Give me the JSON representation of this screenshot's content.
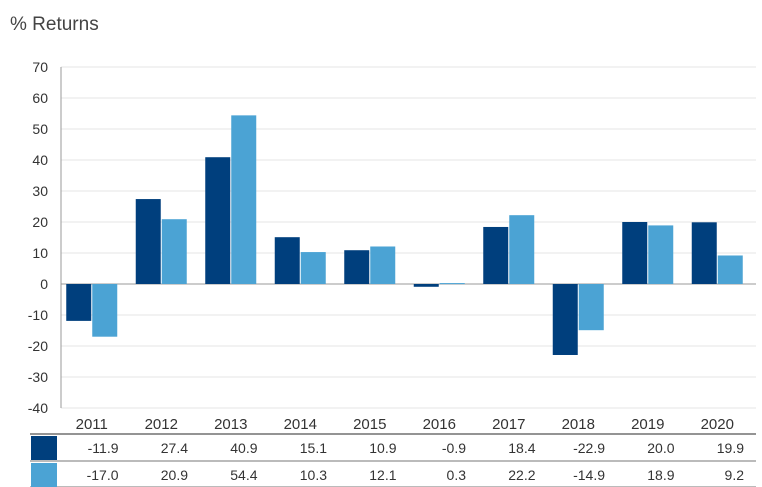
{
  "chart_data": {
    "type": "bar",
    "title": "% Returns",
    "categories": [
      "2011",
      "2012",
      "2013",
      "2014",
      "2015",
      "2016",
      "2017",
      "2018",
      "2019",
      "2020"
    ],
    "series": [
      {
        "values": [
          -11.9,
          27.4,
          40.9,
          15.1,
          10.9,
          -0.9,
          18.4,
          -22.9,
          20.0,
          19.9
        ],
        "labels": [
          "-11.9",
          "27.4",
          "40.9",
          "15.1",
          "10.9",
          "-0.9",
          "18.4",
          "-22.9",
          "20.0",
          "19.9"
        ],
        "color": "#003f7d"
      },
      {
        "values": [
          -17.0,
          20.9,
          54.4,
          10.3,
          12.1,
          0.3,
          22.2,
          -14.9,
          18.9,
          9.2
        ],
        "labels": [
          "-17.0",
          "20.9",
          "54.4",
          "10.3",
          "12.1",
          "0.3",
          "22.2",
          "-14.9",
          "18.9",
          "9.2"
        ],
        "color": "#4ba3d4"
      }
    ],
    "ylim": [
      -40,
      70
    ],
    "yticks": [
      "70",
      "60",
      "50",
      "40",
      "30",
      "20",
      "10",
      "0",
      "-10",
      "-20",
      "-30",
      "-40"
    ],
    "grid": true,
    "legend": "table-below"
  },
  "colors": {
    "grid": "#e6e6e6",
    "axis": "#999999",
    "text": "#333333"
  }
}
